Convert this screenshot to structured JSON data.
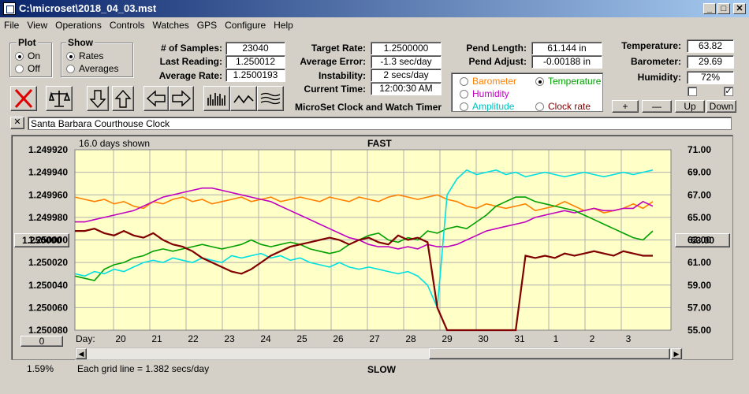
{
  "window": {
    "title": "C:\\microset\\2018_04_03.mst"
  },
  "menu": [
    "File",
    "View",
    "Operations",
    "Controls",
    "Watches",
    "GPS",
    "Configure",
    "Help"
  ],
  "plot_group": {
    "caption": "Plot",
    "on": "On",
    "off": "Off",
    "selected": "On"
  },
  "show_group": {
    "caption": "Show",
    "rates": "Rates",
    "averages": "Averages",
    "selected": "Rates"
  },
  "stats": {
    "samples_label": "# of Samples:",
    "samples": "23040",
    "last_label": "Last Reading:",
    "last": "1.250012",
    "avg_label": "Average Rate:",
    "avg": "1.2500193",
    "target_label": "Target Rate:",
    "target": "1.2500000",
    "avgerr_label": "Average Error:",
    "avgerr": "-1.3 sec/day",
    "instab_label": "Instability:",
    "instab": "2 secs/day",
    "time_label": "Current Time:",
    "time": "12:00:30 AM",
    "pendlen_label": "Pend Length:",
    "pendlen": "61.144 in",
    "pendadj_label": "Pend Adjust:",
    "pendadj": "-0.00188 in",
    "temp_label": "Temperature:",
    "temp": "63.82",
    "baro_label": "Barometer:",
    "baro": "29.69",
    "hum_label": "Humidity:",
    "hum": "72%"
  },
  "app_label": "MicroSet Clock and Watch Timer",
  "sensors": [
    {
      "label": "Barometer",
      "color": "#ff8000",
      "selected": false
    },
    {
      "label": "Temperature",
      "color": "#00a000",
      "selected": true
    },
    {
      "label": "Humidity",
      "color": "#c000c0",
      "selected": false
    },
    {
      "label": "Clock rate",
      "color": "#800000",
      "selected": false
    },
    {
      "label": "Amplitude",
      "color": "#00c0c0",
      "selected": false
    }
  ],
  "scale_buttons": {
    "plus": "+",
    "minus": "—",
    "up": "Up",
    "down": "Down"
  },
  "checkbox_right_checked": "✓",
  "clock_name": "Santa Barbara Courthouse Clock",
  "chart_header": {
    "days_shown": "16.0 days shown",
    "fast": "FAST",
    "slow": "SLOW",
    "grid_note": "Each grid line = 1.382 secs/day",
    "percent": "1.59%",
    "day_label": "Day:"
  },
  "left_value_button": "1.250000",
  "left_zero_button": "0",
  "right_value_button": "63.00",
  "chart_data": {
    "type": "line",
    "x_ticks": [
      "20",
      "21",
      "22",
      "23",
      "24",
      "25",
      "26",
      "27",
      "28",
      "29",
      "30",
      "31",
      "1",
      "2",
      "3"
    ],
    "y_left_ticks": [
      "1.249920",
      "1.249940",
      "1.249960",
      "1.249980",
      "1.250000",
      "1.250020",
      "1.250040",
      "1.250060",
      "1.250080"
    ],
    "y_right_ticks": [
      "71.00",
      "69.00",
      "67.00",
      "65.00",
      "63.00",
      "61.00",
      "59.00",
      "57.00",
      "55.00"
    ],
    "series": [
      {
        "color": "#ff8000",
        "values": [
          1.249962,
          1.249964,
          1.249966,
          1.249964,
          1.249968,
          1.249966,
          1.24997,
          1.249972,
          1.249966,
          1.249968,
          1.249964,
          1.249962,
          1.249966,
          1.249964,
          1.249968,
          1.249966,
          1.249964,
          1.249962,
          1.249966,
          1.249964,
          1.249962,
          1.249966,
          1.249964,
          1.249962,
          1.249964,
          1.249966,
          1.249962,
          1.249964,
          1.249966,
          1.249962,
          1.249964,
          1.249966,
          1.249962,
          1.24996,
          1.249962,
          1.249964,
          1.249962,
          1.24996,
          1.249964,
          1.249966,
          1.24997,
          1.249972,
          1.249968,
          1.24997,
          1.249972,
          1.24997,
          1.249968,
          1.249974,
          1.249972,
          1.24997,
          1.249966,
          1.24997,
          1.249974,
          1.249972,
          1.249976,
          1.249974,
          1.249972,
          1.249968,
          1.249972,
          1.249966
        ]
      },
      {
        "color": "#c000c0",
        "values": [
          1.249984,
          1.249984,
          1.249982,
          1.24998,
          1.249978,
          1.249976,
          1.249974,
          1.24997,
          1.249966,
          1.249962,
          1.24996,
          1.249958,
          1.249956,
          1.249954,
          1.249954,
          1.249956,
          1.249958,
          1.24996,
          1.249962,
          1.249964,
          1.249966,
          1.24997,
          1.249974,
          1.249978,
          1.249982,
          1.249986,
          1.24999,
          1.249994,
          1.249998,
          1.25,
          1.250004,
          1.250006,
          1.250006,
          1.250008,
          1.250006,
          1.250008,
          1.250004,
          1.250006,
          1.250006,
          1.250004,
          1.25,
          1.249996,
          1.249992,
          1.24999,
          1.249988,
          1.249986,
          1.249984,
          1.24998,
          1.249978,
          1.249976,
          1.249974,
          1.249976,
          1.249974,
          1.249972,
          1.249974,
          1.249974,
          1.249972,
          1.249972,
          1.249966,
          1.24997
        ]
      },
      {
        "color": "#00a000",
        "values": [
          1.250032,
          1.250034,
          1.250036,
          1.250026,
          1.250022,
          1.25002,
          1.250016,
          1.250014,
          1.25001,
          1.250008,
          1.25001,
          1.250008,
          1.250006,
          1.250004,
          1.250006,
          1.250008,
          1.250006,
          1.250004,
          1.25,
          1.250004,
          1.250006,
          1.250004,
          1.250002,
          1.250004,
          1.250008,
          1.25001,
          1.250012,
          1.25001,
          1.250004,
          1.25,
          1.249996,
          1.249994,
          1.25,
          1.250002,
          1.249998,
          1.25,
          1.249992,
          1.249994,
          1.24999,
          1.249988,
          1.24999,
          1.249984,
          1.249978,
          1.24997,
          1.249966,
          1.249962,
          1.249962,
          1.249966,
          1.249968,
          1.24997,
          1.249972,
          1.249974,
          1.249978,
          1.249982,
          1.249986,
          1.24999,
          1.249994,
          1.249998,
          1.25,
          1.249992
        ]
      },
      {
        "color": "#00e0e0",
        "values": [
          1.25003,
          1.250032,
          1.250028,
          1.25003,
          1.250026,
          1.250028,
          1.250024,
          1.25002,
          1.250018,
          1.25002,
          1.250016,
          1.250018,
          1.25002,
          1.250016,
          1.250018,
          1.25002,
          1.250014,
          1.250016,
          1.250014,
          1.250012,
          1.250016,
          1.250014,
          1.250018,
          1.250016,
          1.25002,
          1.250022,
          1.250024,
          1.25002,
          1.250024,
          1.250026,
          1.250024,
          1.250026,
          1.250028,
          1.25003,
          1.250028,
          1.250032,
          1.25004,
          1.25006,
          1.24996,
          1.249946,
          1.249938,
          1.249942,
          1.24994,
          1.249938,
          1.249942,
          1.24994,
          1.249944,
          1.249942,
          1.24994,
          1.249942,
          1.249944,
          1.249942,
          1.24994,
          1.249942,
          1.249944,
          1.249942,
          1.24994,
          1.249942,
          1.24994,
          1.249938
        ]
      },
      {
        "color": "#800000",
        "values": [
          1.249992,
          1.249992,
          1.24999,
          1.249994,
          1.249996,
          1.249992,
          1.249996,
          1.249998,
          1.249994,
          1.25,
          1.250004,
          1.250006,
          1.25001,
          1.250016,
          1.25002,
          1.250024,
          1.250028,
          1.25003,
          1.250026,
          1.25002,
          1.250014,
          1.25001,
          1.250006,
          1.250004,
          1.250002,
          1.25,
          1.249998,
          1.25,
          1.250004,
          1.25,
          1.249998,
          1.250002,
          1.250004,
          1.249996,
          1.25,
          1.249998,
          1.250002,
          1.25006,
          1.25008,
          1.25008,
          1.25008,
          1.25008,
          1.25008,
          1.25008,
          1.25008,
          1.25008,
          1.250014,
          1.250016,
          1.250014,
          1.250016,
          1.250012,
          1.250014,
          1.250012,
          1.25001,
          1.250012,
          1.250014,
          1.25001,
          1.250012,
          1.250014,
          1.250014
        ]
      }
    ]
  }
}
